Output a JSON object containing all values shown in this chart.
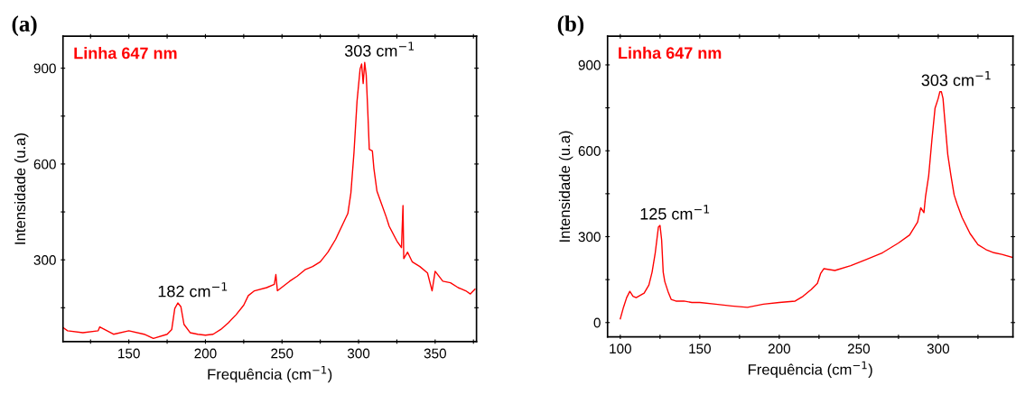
{
  "chart_data": [
    {
      "type": "line",
      "title": "(a)",
      "xlabel": "Frequência (cm$^{−1}$)",
      "ylabel": "Intensidade (u.a)",
      "xlim": [
        107,
        377
      ],
      "ylim": [
        44,
        1000
      ],
      "xticks": [
        {
          "value": 125,
          "label": null
        },
        150,
        {
          "value": 175,
          "label": null
        },
        200,
        {
          "value": 225,
          "label": null
        },
        250,
        {
          "value": 275,
          "label": null
        },
        300,
        {
          "value": 325,
          "label": null
        },
        350,
        {
          "value": 375,
          "label": null
        }
      ],
      "yticks": [
        {
          "value": 150,
          "label": null
        },
        300,
        {
          "value": 450,
          "label": null
        },
        600,
        {
          "value": 750,
          "label": null
        },
        900
      ],
      "grid": false,
      "legend": false,
      "annotations": [
        "Linha 647 nm",
        {
          "text": "182 cm$^{−1}$",
          "x": 182,
          "y": 165
        },
        {
          "text": "303 cm$^{−1}$",
          "x": 304,
          "y": 918
        }
      ],
      "series": [
        {
          "color": "#ff0000",
          "x": [
            107,
            110,
            120,
            130,
            131,
            140,
            150,
            160,
            166,
            175,
            178,
            180,
            182,
            184,
            186,
            190,
            195,
            200,
            205,
            210,
            215,
            220,
            225,
            228,
            232,
            240,
            245,
            246,
            247,
            255,
            260,
            265,
            270,
            275,
            280,
            285,
            290,
            293,
            295,
            297,
            299,
            301,
            302,
            303,
            304,
            305,
            306,
            307,
            309,
            310,
            312,
            315,
            318,
            320,
            325,
            328,
            329,
            329.5,
            332,
            335,
            340,
            345,
            348,
            350,
            355,
            360,
            365,
            370,
            373,
            376
          ],
          "values": [
            88,
            78,
            72,
            78,
            90,
            67,
            78,
            67,
            54,
            67,
            82,
            148,
            165,
            153,
            98,
            72,
            67,
            64,
            67,
            82,
            103,
            128,
            158,
            188,
            203,
            213,
            223,
            254,
            203,
            233,
            249,
            269,
            279,
            294,
            324,
            364,
            415,
            445,
            510,
            636,
            797,
            898,
            913,
            852,
            918,
            878,
            767,
            646,
            641,
            586,
            515,
            475,
            435,
            405,
            359,
            338,
            470,
            304,
            324,
            294,
            279,
            259,
            203,
            264,
            233,
            228,
            213,
            203,
            193,
            208
          ]
        }
      ]
    },
    {
      "type": "line",
      "title": "(b)",
      "xlabel": "Frequência (cm$^{−1}$)",
      "ylabel": "Intensidade (u.a)",
      "xlim": [
        92,
        347
      ],
      "ylim": [
        -50,
        1000
      ],
      "xticks": [
        100,
        {
          "value": 125,
          "label": null
        },
        150,
        {
          "value": 175,
          "label": null
        },
        200,
        {
          "value": 225,
          "label": null
        },
        250,
        {
          "value": 275,
          "label": null
        },
        300,
        {
          "value": 325,
          "label": null
        }
      ],
      "yticks": [
        0,
        {
          "value": 150,
          "label": null
        },
        300,
        {
          "value": 450,
          "label": null
        },
        600,
        {
          "value": 750,
          "label": null
        },
        900
      ],
      "grid": false,
      "legend": false,
      "annotations": [
        "Linha 647 nm",
        {
          "text": "125 cm$^{−1}$",
          "x": 125,
          "y": 339
        },
        {
          "text": "303 cm$^{−1}$",
          "x": 302,
          "y": 806
        }
      ],
      "series": [
        {
          "color": "#ff0000",
          "x": [
            100,
            102,
            104,
            106,
            108,
            110,
            115,
            118,
            120,
            122,
            124,
            125,
            126,
            127,
            128,
            130,
            132,
            135,
            140,
            145,
            150,
            160,
            170,
            180,
            190,
            200,
            210,
            215,
            220,
            224,
            226,
            228,
            235,
            245,
            255,
            265,
            275,
            282,
            287,
            289,
            291,
            292,
            294,
            296,
            298,
            300,
            301,
            302,
            303,
            304,
            306,
            308,
            310,
            312,
            315,
            320,
            325,
            330,
            335,
            340,
            347
          ],
          "values": [
            13,
            53,
            87,
            109,
            92,
            87,
            103,
            131,
            176,
            244,
            334,
            339,
            289,
            176,
            143,
            109,
            81,
            75,
            75,
            70,
            70,
            64,
            58,
            53,
            64,
            70,
            75,
            92,
            115,
            137,
            171,
            188,
            182,
            199,
            221,
            244,
            278,
            306,
            351,
            401,
            384,
            440,
            513,
            637,
            749,
            783,
            806,
            806,
            783,
            716,
            587,
            513,
            446,
            412,
            367,
            311,
            272,
            255,
            244,
            238,
            227
          ]
        }
      ]
    }
  ]
}
